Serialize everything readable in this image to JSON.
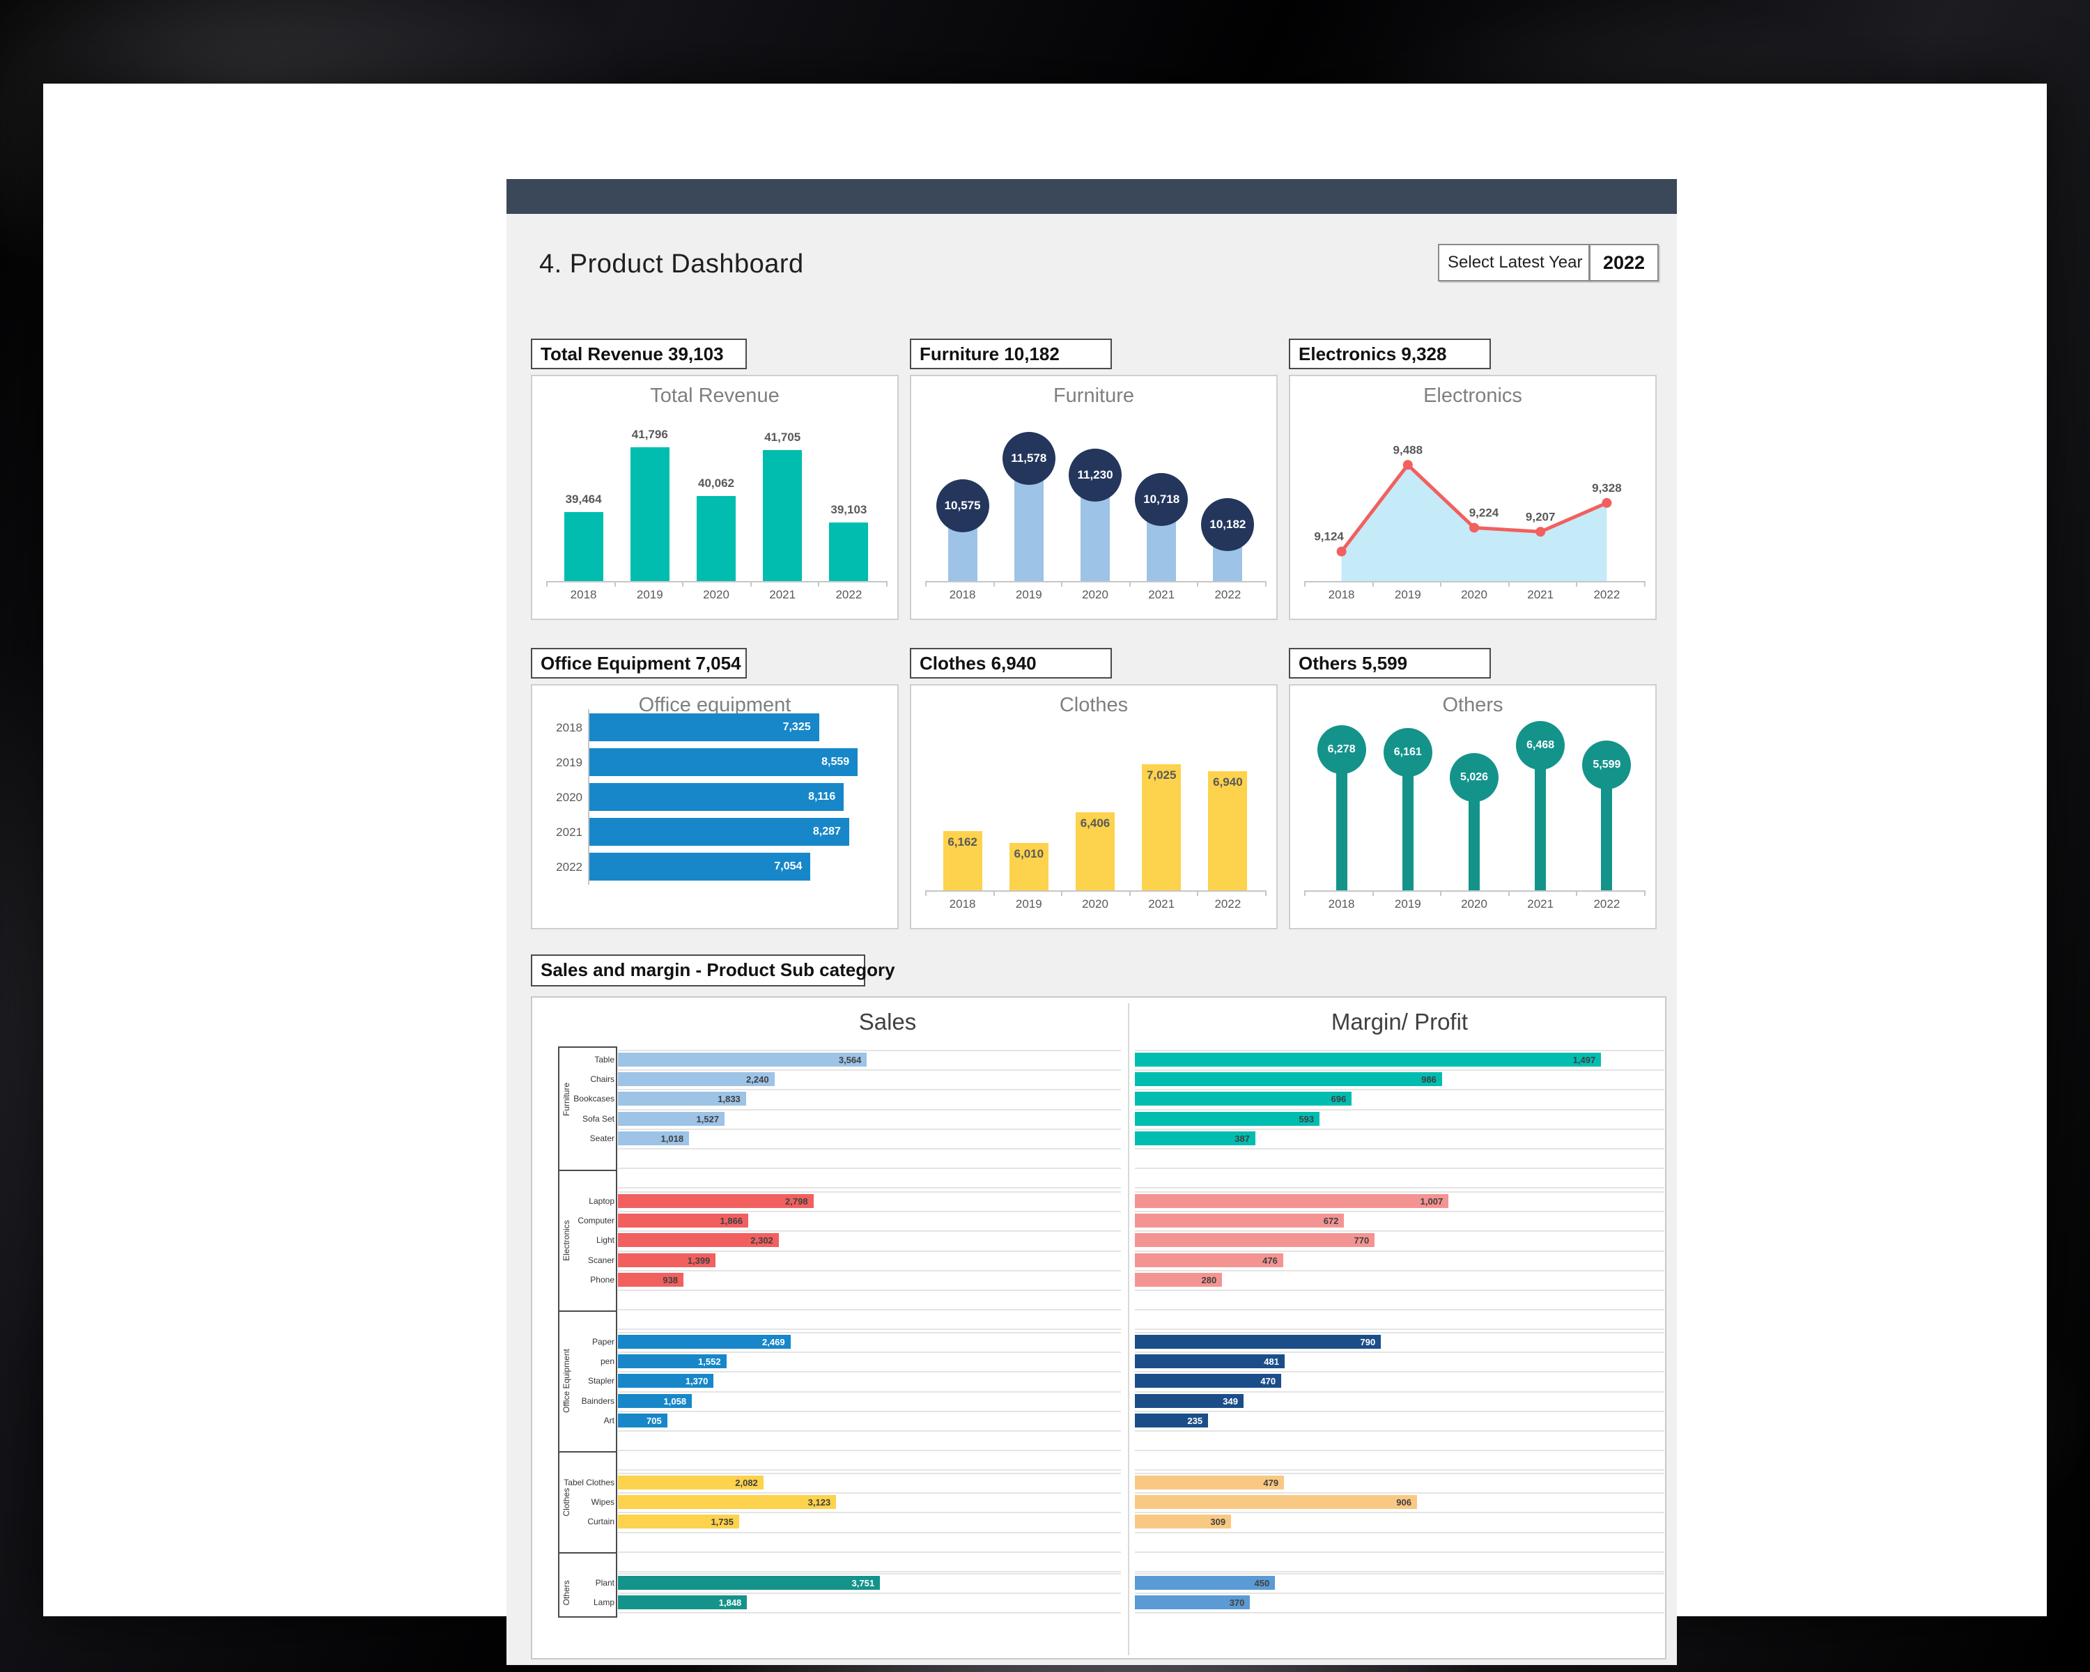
{
  "window": {
    "title": "4. Product Dashboard",
    "year_selector_label": "Select Latest Year",
    "year_selector_value": "2022"
  },
  "years": [
    "2018",
    "2019",
    "2020",
    "2021",
    "2022"
  ],
  "chart_data": [
    {
      "id": "total-revenue",
      "type": "column",
      "header": "Total Revenue 39,103",
      "title": "Total Revenue",
      "categories": [
        "2018",
        "2019",
        "2020",
        "2021",
        "2022"
      ],
      "values": [
        39464,
        41796,
        40062,
        41705,
        39103
      ],
      "ylim": [
        37000,
        42000
      ],
      "color": "#00bdb0",
      "value_label_position": "above",
      "label_color": "#595959"
    },
    {
      "id": "furniture",
      "type": "lollipop-column",
      "header": "Furniture 10,182",
      "title": "Furniture",
      "categories": [
        "2018",
        "2019",
        "2020",
        "2021",
        "2022"
      ],
      "values": [
        10575,
        11578,
        11230,
        10718,
        10182
      ],
      "ylim": [
        9000,
        12000
      ],
      "bar_color": "#9dc3e6",
      "marker_color": "#24365c"
    },
    {
      "id": "electronics",
      "type": "area-line",
      "header": "Electronics 9,328",
      "title": "Electronics",
      "categories": [
        "2018",
        "2019",
        "2020",
        "2021",
        "2022"
      ],
      "values": [
        9124,
        9488,
        9224,
        9207,
        9328
      ],
      "ylim": [
        9000,
        9600
      ],
      "line_color": "#f1605f",
      "fill_color": "#c5eaf8",
      "label_color": "#595959"
    },
    {
      "id": "office-equipment",
      "type": "bar-horizontal",
      "header": "Office Equipment 7,054",
      "title": "Office equipment",
      "categories": [
        "2018",
        "2019",
        "2020",
        "2021",
        "2022"
      ],
      "values": [
        7325,
        8559,
        8116,
        8287,
        7054
      ],
      "xlim": [
        0,
        9000
      ],
      "color": "#1787c9"
    },
    {
      "id": "clothes",
      "type": "column",
      "header": "Clothes 6,940",
      "title": "Clothes",
      "categories": [
        "2018",
        "2019",
        "2020",
        "2021",
        "2022"
      ],
      "values": [
        6162,
        6010,
        6406,
        7025,
        6940
      ],
      "ylim": [
        5400,
        7200
      ],
      "color": "#fdd24c",
      "value_label_position": "inside",
      "label_color": "#595959"
    },
    {
      "id": "others",
      "type": "lollipop",
      "header": "Others 5,599",
      "title": "Others",
      "categories": [
        "2018",
        "2019",
        "2020",
        "2021",
        "2022"
      ],
      "values": [
        6278,
        6161,
        5026,
        6468,
        5599
      ],
      "ylim": [
        0,
        7000
      ],
      "color": "#14938b"
    },
    {
      "id": "sales-margin",
      "type": "bar-horizontal-grouped",
      "section_header": "Sales and margin - Product Sub category",
      "panels": [
        {
          "title": "Sales",
          "axis_max": 7200
        },
        {
          "title": "Margin/ Profit",
          "axis_max": 1700
        }
      ],
      "groups": [
        {
          "name": "Furniture",
          "items": [
            "Table",
            "Chairs",
            "Bookcases",
            "Sofa Set",
            "Seater"
          ],
          "sales": [
            3564,
            2240,
            1833,
            1527,
            1018
          ],
          "margin": [
            1497,
            986,
            696,
            593,
            387
          ],
          "sales_color": "#9dc3e6",
          "margin_color": "#00bdb0",
          "sales_text": "#404040",
          "margin_text": "#404040"
        },
        {
          "name": "Electronics",
          "items": [
            "Laptop",
            "Computer",
            "Light",
            "Scaner",
            "Phone"
          ],
          "sales": [
            2798,
            1866,
            2302,
            1399,
            938
          ],
          "margin": [
            1007,
            672,
            770,
            476,
            280
          ],
          "sales_color": "#f1605f",
          "margin_color": "#f49492",
          "sales_text": "#404040",
          "margin_text": "#404040"
        },
        {
          "name": "Office Equipment",
          "items": [
            "Paper",
            "pen",
            "Stapler",
            "Bainders",
            "Art"
          ],
          "sales": [
            2469,
            1552,
            1370,
            1058,
            705
          ],
          "margin": [
            790,
            481,
            470,
            349,
            235
          ],
          "sales_color": "#1787c9",
          "margin_color": "#1b4e89",
          "sales_text": "#ffffff",
          "margin_text": "#ffffff"
        },
        {
          "name": "Clothes",
          "items": [
            "Tabel Clothes",
            "Wipes",
            "Curtain"
          ],
          "sales": [
            2082,
            3123,
            1735
          ],
          "margin": [
            479,
            906,
            309
          ],
          "sales_color": "#fdd24c",
          "margin_color": "#f9c983",
          "sales_text": "#404040",
          "margin_text": "#404040"
        },
        {
          "name": "Others",
          "items": [
            "Plant",
            "Lamp"
          ],
          "sales": [
            3751,
            1848
          ],
          "margin": [
            450,
            370
          ],
          "sales_color": "#14938b",
          "margin_color": "#5b9bd5",
          "sales_text": "#ffffff",
          "margin_text": "#404040"
        }
      ]
    }
  ]
}
